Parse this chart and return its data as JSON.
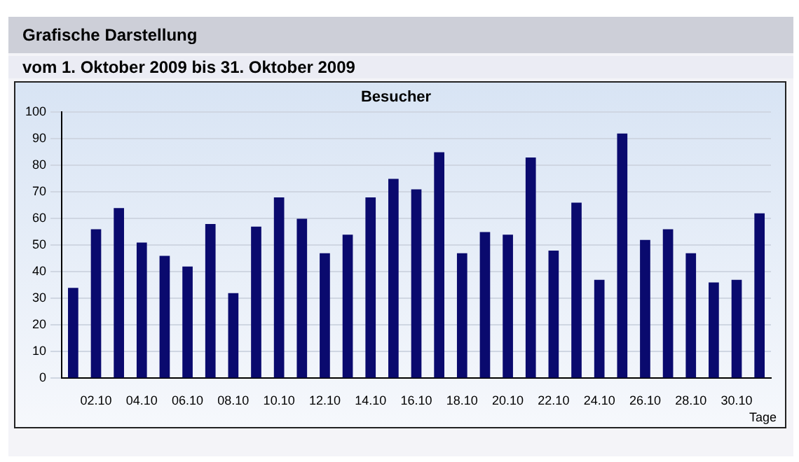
{
  "chart_data": {
    "type": "bar",
    "title": "Besucher",
    "subtitle": "vom 1. Oktober 2009  bis 31. Oktober 2009",
    "annotations": [
      "Grafische Darstellung"
    ],
    "xlabel": "Tage",
    "categories": [
      null,
      "02.10",
      null,
      "04.10",
      null,
      "06.10",
      null,
      "08.10",
      null,
      "10.10",
      null,
      "12.10",
      null,
      "14.10",
      null,
      "16.10",
      null,
      "18.10",
      null,
      "20.10",
      null,
      "22.10",
      null,
      "24.10",
      null,
      "26.10",
      null,
      "28.10",
      null,
      "30.10",
      null
    ],
    "values": [
      34,
      56,
      64,
      51,
      46,
      42,
      58,
      32,
      57,
      68,
      60,
      47,
      54,
      68,
      75,
      71,
      85,
      47,
      55,
      54,
      83,
      48,
      66,
      37,
      92,
      52,
      56,
      47,
      36,
      37,
      62
    ],
    "color": "#0a0a6e",
    "ylim": [
      0,
      100
    ],
    "yticks": [
      0,
      10,
      20,
      30,
      40,
      50,
      60,
      70,
      80,
      90,
      100
    ],
    "grid": "y",
    "legend": false
  }
}
